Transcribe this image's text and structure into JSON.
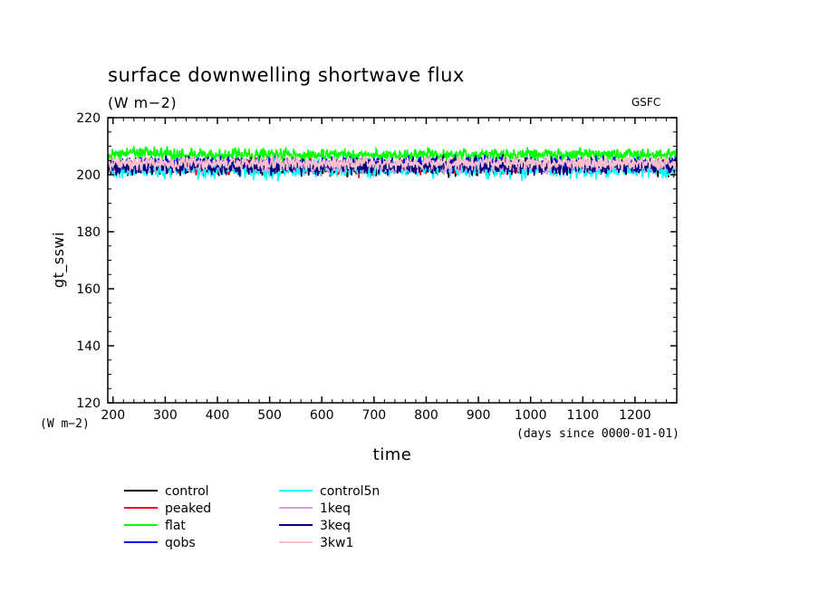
{
  "chart_data": {
    "type": "line",
    "title": "surface downwelling shortwave flux",
    "subtitle": "(W m−2)",
    "source_label": "GSFC",
    "ylabel": "gt_sswi",
    "yunits": "(W m−2)",
    "xlabel": "time",
    "xunits": "(days since 0000-01-01)",
    "xlim": [
      190,
      1280
    ],
    "ylim": [
      120,
      220
    ],
    "xticks": [
      200,
      300,
      400,
      500,
      600,
      700,
      800,
      900,
      1000,
      1100,
      1200
    ],
    "yticks": [
      120,
      140,
      160,
      180,
      200,
      220
    ],
    "grid": false,
    "legend_position": "bottom-left",
    "series": [
      {
        "name": "control",
        "color": "#000000",
        "x": [
          190,
          250,
          350,
          450,
          550,
          650,
          750,
          850,
          950,
          1050,
          1150,
          1280
        ],
        "values": [
          202,
          203,
          202,
          203,
          202,
          202,
          203,
          202,
          203,
          202,
          203,
          202
        ]
      },
      {
        "name": "peaked",
        "color": "#ff0000",
        "x": [
          190,
          250,
          350,
          450,
          550,
          650,
          750,
          850,
          950,
          1050,
          1150,
          1280
        ],
        "values": [
          203,
          203,
          202,
          203,
          203,
          202,
          203,
          203,
          202,
          203,
          203,
          203
        ]
      },
      {
        "name": "flat",
        "color": "#00ff00",
        "x": [
          190,
          250,
          350,
          450,
          550,
          650,
          750,
          850,
          950,
          1050,
          1150,
          1280
        ],
        "values": [
          207,
          208,
          207,
          207,
          207,
          207,
          207,
          207,
          207,
          207,
          207,
          207
        ]
      },
      {
        "name": "qobs",
        "color": "#0000ff",
        "x": [
          190,
          250,
          350,
          450,
          550,
          650,
          750,
          850,
          950,
          1050,
          1150,
          1280
        ],
        "values": [
          204,
          204,
          204,
          204,
          204,
          204,
          204,
          204,
          204,
          204,
          204,
          204
        ]
      },
      {
        "name": "control5n",
        "color": "#00ffff",
        "x": [
          190,
          250,
          350,
          450,
          550,
          650,
          750,
          850,
          950,
          1050,
          1150,
          1280
        ],
        "values": [
          202,
          202,
          202,
          202,
          202,
          202,
          202,
          202,
          202,
          202,
          202,
          202
        ]
      },
      {
        "name": "1keq",
        "color": "#d8a0e0",
        "x": [
          190,
          250,
          350,
          450,
          550,
          650,
          750,
          850,
          950,
          1050,
          1150,
          1280
        ],
        "values": [
          203,
          203,
          203,
          203,
          203,
          203,
          203,
          203,
          203,
          203,
          203,
          203
        ]
      },
      {
        "name": "3keq",
        "color": "#000080",
        "x": [
          190,
          250,
          350,
          450,
          550,
          650,
          750,
          850,
          950,
          1050,
          1150,
          1280
        ],
        "values": [
          203,
          203,
          203,
          203,
          203,
          203,
          203,
          203,
          203,
          203,
          203,
          203
        ]
      },
      {
        "name": "3kw1",
        "color": "#ffc0cb",
        "x": [
          190,
          250,
          350,
          450,
          550,
          650,
          750,
          850,
          950,
          1050,
          1150,
          1280
        ],
        "values": [
          204,
          204,
          204,
          204,
          204,
          204,
          204,
          204,
          204,
          204,
          204,
          204
        ]
      }
    ]
  }
}
